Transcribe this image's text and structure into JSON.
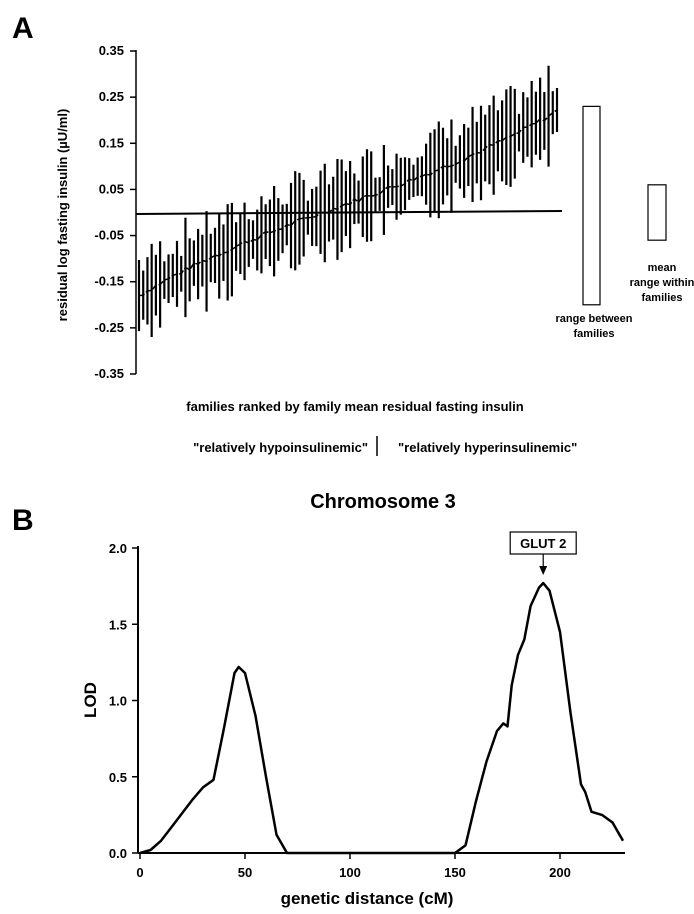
{
  "chart_data": [
    {
      "type": "scatter",
      "panel_label": "A",
      "title": "",
      "xlabel": "families ranked by family mean residual fasting insulin",
      "ylabel": "residual log fasting insulin (µU/ml)",
      "ylim": [
        -0.35,
        0.35
      ],
      "y_ticks": [
        0.35,
        0.25,
        0.15,
        0.05,
        -0.05,
        -0.15,
        -0.25,
        -0.35
      ],
      "y_tick_labels": [
        "0.35",
        "0.25",
        "0.15",
        "0.05",
        "-0.05",
        "-0.15",
        "-0.25",
        "-0.35"
      ],
      "families_count": 100,
      "reference_line_y": 0.0,
      "mean_start": -0.18,
      "mean_end": 0.22,
      "overall_range_between_families": [
        -0.2,
        0.23
      ],
      "mean_range_within_families": [
        -0.06,
        0.06
      ],
      "box_labels": {
        "between": [
          "range between",
          "families"
        ],
        "within": [
          "mean",
          "range within",
          "families"
        ]
      },
      "group_labels": {
        "left": "\"relatively hypoinsulinemic\"",
        "right": "\"relatively hyperinsulinemic\""
      },
      "grid": false,
      "legend": "none"
    },
    {
      "type": "line",
      "panel_label": "B",
      "title": "Chromosome 3",
      "xlabel": "genetic distance (cM)",
      "ylabel": "LOD",
      "xlim": [
        0,
        230
      ],
      "ylim": [
        0.0,
        2.0
      ],
      "x_ticks": [
        0,
        50,
        100,
        150,
        200
      ],
      "x_tick_labels": [
        "0",
        "50",
        "100",
        "150",
        "200"
      ],
      "y_ticks": [
        0.0,
        0.5,
        1.0,
        1.5,
        2.0
      ],
      "y_tick_labels": [
        "0.0",
        "0.5",
        "1.0",
        "1.5",
        "2.0"
      ],
      "x": [
        0,
        5,
        10,
        15,
        20,
        25,
        30,
        35,
        40,
        45,
        47,
        50,
        55,
        60,
        65,
        70,
        80,
        100,
        120,
        140,
        150,
        155,
        160,
        165,
        170,
        173,
        175,
        177,
        180,
        183,
        186,
        190,
        192,
        195,
        200,
        205,
        210,
        212,
        215,
        220,
        225,
        230
      ],
      "y": [
        0.0,
        0.02,
        0.08,
        0.17,
        0.26,
        0.35,
        0.43,
        0.48,
        0.82,
        1.18,
        1.22,
        1.18,
        0.9,
        0.5,
        0.12,
        0.0,
        0.0,
        0.0,
        0.0,
        0.0,
        0.0,
        0.05,
        0.34,
        0.6,
        0.8,
        0.85,
        0.83,
        1.1,
        1.3,
        1.4,
        1.62,
        1.74,
        1.77,
        1.72,
        1.45,
        0.92,
        0.45,
        0.4,
        0.27,
        0.25,
        0.2,
        0.08
      ],
      "annotation": {
        "label": "GLUT 2",
        "x": 192
      },
      "grid": false,
      "legend": "none"
    }
  ]
}
